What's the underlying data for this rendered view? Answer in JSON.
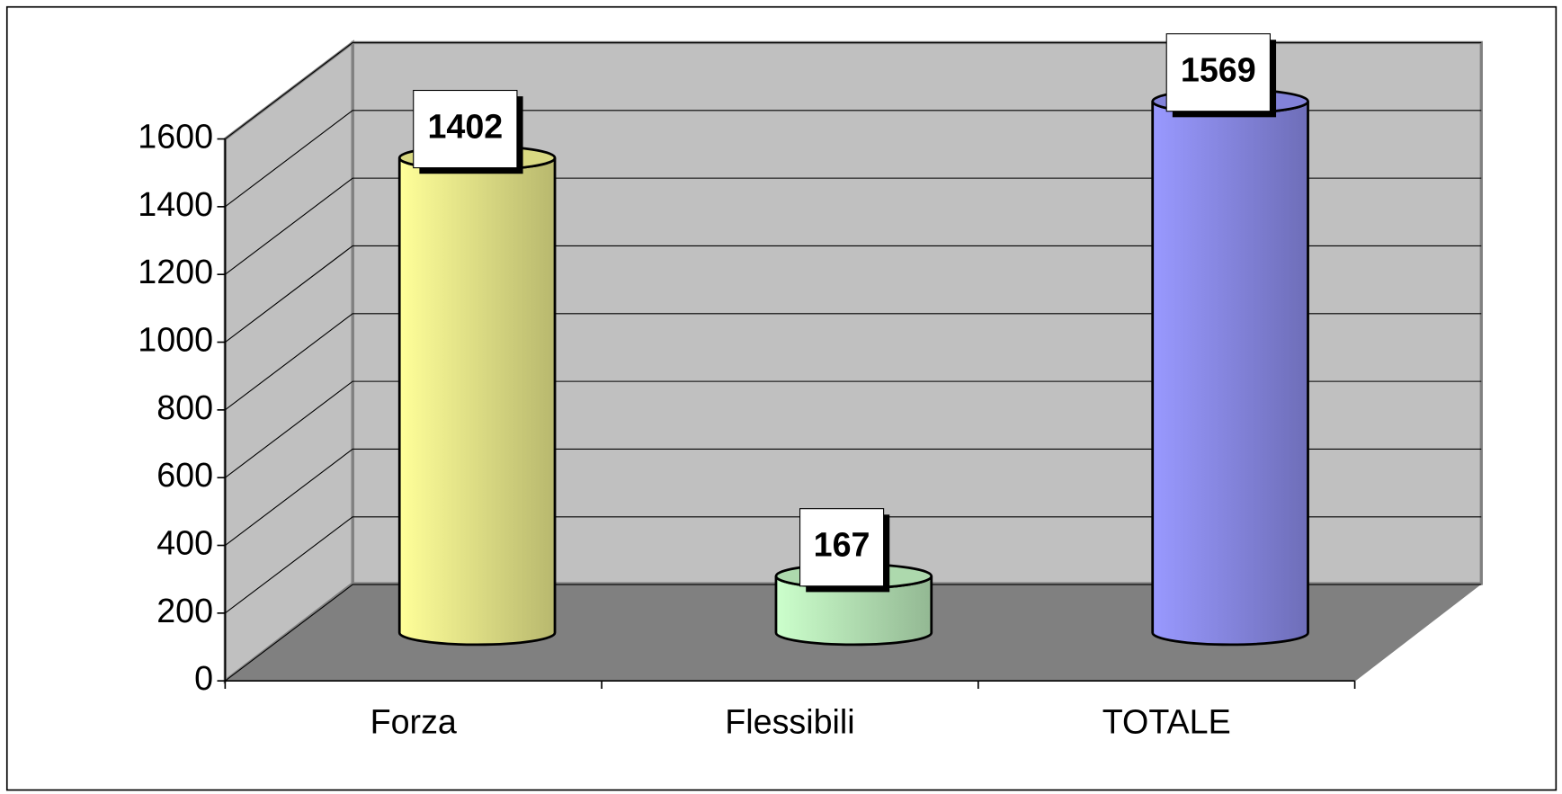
{
  "chart_data": {
    "type": "bar",
    "categories": [
      "Forza",
      "Flessibili",
      "TOTALE"
    ],
    "values": [
      1402,
      167,
      1569
    ],
    "colors": [
      "#ffff99",
      "#ccffcc",
      "#9999ff"
    ],
    "ylim": [
      0,
      1600
    ],
    "yticks": [
      0,
      200,
      400,
      600,
      800,
      1000,
      1200,
      1400,
      1600
    ],
    "grid": true
  }
}
